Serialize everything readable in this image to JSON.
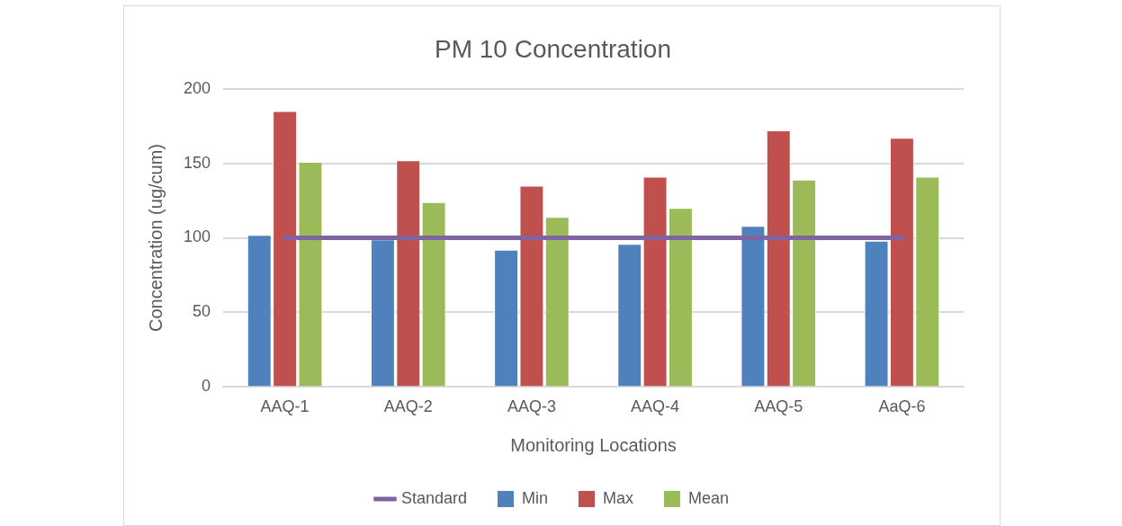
{
  "chart_data": {
    "type": "bar",
    "title": "PM 10 Concentration",
    "xlabel": "Monitoring Locations",
    "ylabel": "Concentration (ug/cum)",
    "categories": [
      "AAQ-1",
      "AAQ-2",
      "AAQ-3",
      "AAQ-4",
      "AAQ-5",
      "AaQ-6"
    ],
    "series": [
      {
        "name": "Min",
        "color": "#4f81bd",
        "values": [
          102,
          99,
          92,
          96,
          108,
          98
        ]
      },
      {
        "name": "Max",
        "color": "#c0504d",
        "values": [
          185,
          152,
          135,
          141,
          172,
          167
        ]
      },
      {
        "name": "Mean",
        "color": "#9bbb59",
        "values": [
          151,
          124,
          114,
          120,
          139,
          141
        ]
      },
      {
        "name": "Standard",
        "type": "line",
        "color": "#8064a2",
        "values": [
          100,
          100,
          100,
          100,
          100,
          100
        ]
      }
    ],
    "ylim": [
      0,
      200
    ],
    "yticks": [
      0,
      50,
      100,
      150,
      200
    ],
    "grid": "y",
    "legend": "bottom",
    "marker": "none",
    "line_style": "solid"
  }
}
